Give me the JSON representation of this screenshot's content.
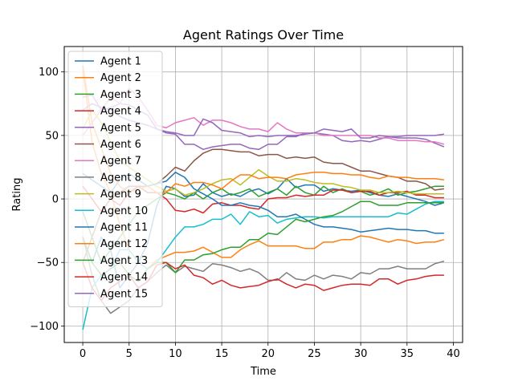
{
  "chart_data": {
    "type": "line",
    "title": "Agent Ratings Over Time",
    "xlabel": "Time",
    "ylabel": "Rating",
    "xlim": [
      -2,
      41
    ],
    "ylim": [
      -113,
      120
    ],
    "xticks": [
      0,
      5,
      10,
      15,
      20,
      25,
      30,
      35,
      40
    ],
    "yticks": [
      -100,
      -50,
      0,
      50,
      100
    ],
    "ytick_labels": [
      "−100",
      "−50",
      "0",
      "50",
      "100"
    ],
    "grid": true,
    "legend": "upper left",
    "x": [
      0,
      1,
      2,
      3,
      4,
      5,
      6,
      7,
      8,
      9,
      10,
      11,
      12,
      13,
      14,
      15,
      16,
      17,
      18,
      19,
      20,
      21,
      22,
      23,
      24,
      25,
      26,
      27,
      28,
      29,
      30,
      31,
      32,
      33,
      34,
      35,
      36,
      37,
      38,
      39
    ],
    "series": [
      {
        "name": "Agent 1",
        "color": "#1f77b4",
        "values": [
          -30,
          -50,
          -30,
          -40,
          -70,
          -60,
          -50,
          -35,
          -5,
          10,
          8,
          2,
          3,
          12,
          5,
          2,
          4,
          2,
          6,
          8,
          4,
          8,
          16,
          9,
          11,
          11,
          6,
          8,
          7,
          6,
          7,
          5,
          3,
          2,
          4,
          2,
          0,
          -2,
          -5,
          -3
        ]
      },
      {
        "name": "Agent 2",
        "color": "#ff7f0e",
        "values": [
          102,
          45,
          20,
          5,
          -20,
          -40,
          -50,
          -55,
          -48,
          -45,
          -42,
          -42,
          -41,
          -38,
          -42,
          -46,
          -46,
          -40,
          -36,
          -33,
          -37,
          -37,
          -37,
          -37,
          -39,
          -39,
          -34,
          -34,
          -32,
          -32,
          -29,
          -30,
          -32,
          -34,
          -32,
          -33,
          -35,
          -34,
          -34,
          -32
        ]
      },
      {
        "name": "Agent 3",
        "color": "#2ca02c",
        "values": [
          -10,
          -30,
          -50,
          -40,
          -30,
          -20,
          -10,
          -5,
          0,
          5,
          3,
          0,
          5,
          0,
          5,
          8,
          3,
          5,
          8,
          2,
          5,
          8,
          3,
          10,
          5,
          3,
          10,
          5,
          8,
          5,
          6,
          3,
          5,
          8,
          3,
          5,
          6,
          8,
          10,
          10
        ]
      },
      {
        "name": "Agent 4",
        "color": "#d62728",
        "values": [
          10,
          0,
          -10,
          0,
          -5,
          5,
          10,
          5,
          5,
          0,
          -9,
          -10,
          -8,
          -11,
          -4,
          -3,
          -5,
          -5,
          -7,
          -8,
          0,
          1,
          1,
          3,
          2,
          3,
          3,
          7,
          7,
          5,
          6,
          6,
          3,
          5,
          5,
          6,
          3,
          3,
          1,
          1
        ]
      },
      {
        "name": "Agent 5",
        "color": "#9467bd",
        "values": [
          80,
          82,
          70,
          72,
          75,
          74,
          70,
          66,
          55,
          52,
          51,
          43,
          43,
          39,
          41,
          42,
          43,
          43,
          40,
          39,
          43,
          43,
          49,
          49,
          52,
          52,
          51,
          50,
          46,
          45,
          46,
          45,
          47,
          49,
          48,
          48,
          48,
          47,
          44,
          41
        ]
      },
      {
        "name": "Agent 6",
        "color": "#8c564b",
        "values": [
          -50,
          -30,
          -10,
          0,
          5,
          10,
          10,
          10,
          12,
          18,
          25,
          22,
          30,
          36,
          39,
          39,
          38,
          37,
          37,
          34,
          35,
          35,
          32,
          33,
          32,
          33,
          29,
          28,
          28,
          25,
          22,
          22,
          20,
          18,
          17,
          14,
          14,
          12,
          7,
          8
        ]
      },
      {
        "name": "Agent 7",
        "color": "#e377c2",
        "values": [
          50,
          60,
          70,
          80,
          75,
          87,
          80,
          70,
          58,
          56,
          60,
          62,
          64,
          58,
          62,
          62,
          60,
          57,
          55,
          55,
          53,
          60,
          55,
          52,
          52,
          52,
          50,
          50,
          50,
          50,
          50,
          50,
          48,
          48,
          46,
          46,
          46,
          45,
          45,
          43
        ]
      },
      {
        "name": "Agent 8",
        "color": "#7f7f7f",
        "values": [
          -30,
          -60,
          -80,
          -90,
          -85,
          -80,
          -70,
          -65,
          -58,
          -52,
          -58,
          -53,
          -55,
          -57,
          -51,
          -52,
          -54,
          -57,
          -55,
          -58,
          -64,
          -64,
          -58,
          -63,
          -64,
          -60,
          -63,
          -60,
          -61,
          -63,
          -58,
          -59,
          -55,
          -55,
          -53,
          -55,
          -55,
          -55,
          -51,
          -49
        ]
      },
      {
        "name": "Agent 9",
        "color": "#bcbd22",
        "values": [
          55,
          70,
          60,
          45,
          30,
          25,
          20,
          15,
          10,
          6,
          8,
          3,
          5,
          8,
          12,
          15,
          16,
          11,
          17,
          23,
          18,
          14,
          14,
          16,
          15,
          13,
          12,
          12,
          10,
          9,
          7,
          7,
          5,
          5,
          6,
          5,
          4,
          4,
          4,
          4
        ]
      },
      {
        "name": "Agent 10",
        "color": "#17becf",
        "values": [
          -103,
          -70,
          -60,
          -55,
          -40,
          -40,
          -50,
          -55,
          -50,
          -40,
          -30,
          -22,
          -22,
          -20,
          -16,
          -16,
          -12,
          -20,
          -10,
          -14,
          -13,
          -19,
          -16,
          -15,
          -14,
          -14,
          -15,
          -14,
          -14,
          -14,
          -14,
          -14,
          -14,
          -14,
          -11,
          -12,
          -8,
          -4,
          -2,
          -2
        ]
      },
      {
        "name": "Agent 11",
        "color": "#1f77b4",
        "values": [
          20,
          15,
          10,
          5,
          15,
          20,
          15,
          10,
          12,
          14,
          21,
          17,
          8,
          4,
          0,
          -5,
          -5,
          -3,
          -5,
          -6,
          -9,
          -14,
          -14,
          -12,
          -16,
          -20,
          -22,
          -22,
          -23,
          -24,
          -26,
          -25,
          -24,
          -23,
          -24,
          -24,
          -25,
          -25,
          -27,
          -27
        ]
      },
      {
        "name": "Agent 12",
        "color": "#ff7f0e",
        "values": [
          105,
          60,
          40,
          20,
          10,
          5,
          8,
          10,
          5,
          5,
          12,
          10,
          13,
          13,
          11,
          8,
          14,
          19,
          19,
          16,
          17,
          17,
          16,
          19,
          20,
          21,
          21,
          20,
          20,
          19,
          19,
          17,
          16,
          18,
          17,
          17,
          16,
          16,
          16,
          15
        ]
      },
      {
        "name": "Agent 13",
        "color": "#2ca02c",
        "values": [
          -30,
          -50,
          -60,
          -55,
          -50,
          -60,
          -65,
          -55,
          -50,
          -50,
          -58,
          -48,
          -48,
          -44,
          -43,
          -40,
          -38,
          -38,
          -32,
          -32,
          -27,
          -28,
          -22,
          -16,
          -18,
          -16,
          -14,
          -13,
          -10,
          -6,
          -2,
          -2,
          -5,
          -5,
          -5,
          -3,
          -3,
          -3,
          -3,
          -3
        ]
      },
      {
        "name": "Agent 14",
        "color": "#d62728",
        "values": [
          -50,
          -70,
          -80,
          -70,
          -65,
          -60,
          -70,
          -65,
          -52,
          -50,
          -55,
          -52,
          -60,
          -62,
          -67,
          -64,
          -68,
          -70,
          -69,
          -68,
          -65,
          -63,
          -67,
          -70,
          -67,
          -68,
          -72,
          -70,
          -68,
          -67,
          -67,
          -68,
          -63,
          -63,
          -67,
          -64,
          -63,
          -61,
          -60,
          -60
        ]
      },
      {
        "name": "Agent 15",
        "color": "#9467bd",
        "values": [
          70,
          75,
          72,
          70,
          65,
          62,
          60,
          58,
          55,
          53,
          52,
          50,
          50,
          63,
          60,
          54,
          53,
          52,
          49,
          50,
          49,
          50,
          50,
          50,
          51,
          52,
          55,
          54,
          53,
          55,
          48,
          48,
          50,
          49,
          49,
          50,
          50,
          50,
          50,
          51
        ]
      }
    ]
  }
}
